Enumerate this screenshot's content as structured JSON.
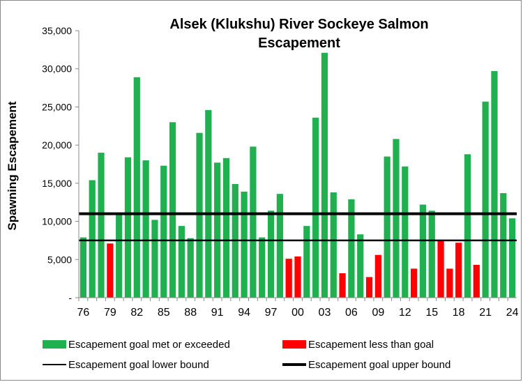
{
  "chart_data": {
    "type": "bar",
    "title_lines": [
      "Alsek (Klukshu) River Sockeye Salmon",
      "Escapement"
    ],
    "xlabel": "",
    "ylabel": "Spawning Escapement",
    "ylim": [
      0,
      35000
    ],
    "yticks": [
      0,
      5000,
      10000,
      15000,
      20000,
      25000,
      30000,
      35000
    ],
    "ytick_labels": [
      "-",
      "5,000",
      "10,000",
      "15,000",
      "20,000",
      "25,000",
      "30,000",
      "35,000"
    ],
    "years": [
      1976,
      1977,
      1978,
      1979,
      1980,
      1981,
      1982,
      1983,
      1984,
      1985,
      1986,
      1987,
      1988,
      1989,
      1990,
      1991,
      1992,
      1993,
      1994,
      1995,
      1996,
      1997,
      1998,
      1999,
      2000,
      2001,
      2002,
      2003,
      2004,
      2005,
      2006,
      2007,
      2008,
      2009,
      2010,
      2011,
      2012,
      2013,
      2014,
      2015,
      2016,
      2017,
      2018,
      2019,
      2020,
      2021,
      2022,
      2023,
      2024
    ],
    "x_tick_labels": [
      "76",
      "79",
      "82",
      "85",
      "88",
      "91",
      "94",
      "97",
      "00",
      "03",
      "06",
      "09",
      "12",
      "15",
      "18",
      "21",
      "24"
    ],
    "x_tick_years": [
      1976,
      1979,
      1982,
      1985,
      1988,
      1991,
      1994,
      1997,
      2000,
      2003,
      2006,
      2009,
      2012,
      2015,
      2018,
      2021,
      2024
    ],
    "values": [
      7900,
      15400,
      19000,
      7100,
      11100,
      18400,
      28900,
      18000,
      10200,
      17300,
      23000,
      9400,
      7800,
      21600,
      24600,
      17700,
      18300,
      14900,
      13900,
      19800,
      7900,
      11400,
      13600,
      5100,
      5400,
      9400,
      23600,
      32100,
      13800,
      3200,
      12900,
      8300,
      2700,
      5600,
      18500,
      20800,
      17200,
      3800,
      12200,
      11400,
      7500,
      3800,
      7200,
      18800,
      4300,
      25700,
      29700,
      13700,
      10400
    ],
    "met_goal": [
      true,
      true,
      true,
      false,
      true,
      true,
      true,
      true,
      true,
      true,
      true,
      true,
      true,
      true,
      true,
      true,
      true,
      true,
      true,
      true,
      true,
      true,
      true,
      false,
      false,
      true,
      true,
      true,
      true,
      false,
      true,
      true,
      false,
      false,
      true,
      true,
      true,
      false,
      true,
      true,
      false,
      false,
      false,
      true,
      false,
      true,
      true,
      true,
      true
    ],
    "goal_lower_bound": 7500,
    "goal_upper_bound": 11000,
    "legend_placement": "bottom",
    "legend": [
      {
        "label": "Escapement goal met or exceeded",
        "kind": "bar",
        "color": "#21b050"
      },
      {
        "label": "Escapement less than goal",
        "kind": "bar",
        "color": "#ff0000"
      },
      {
        "label": "Escapement goal lower bound",
        "kind": "line-thin",
        "color": "#000000"
      },
      {
        "label": "Escapement goal upper bound",
        "kind": "line-thick",
        "color": "#000000"
      }
    ],
    "colors": {
      "met": "#21b050",
      "below": "#ff0000",
      "bounds": "#000000"
    },
    "grid": false
  }
}
